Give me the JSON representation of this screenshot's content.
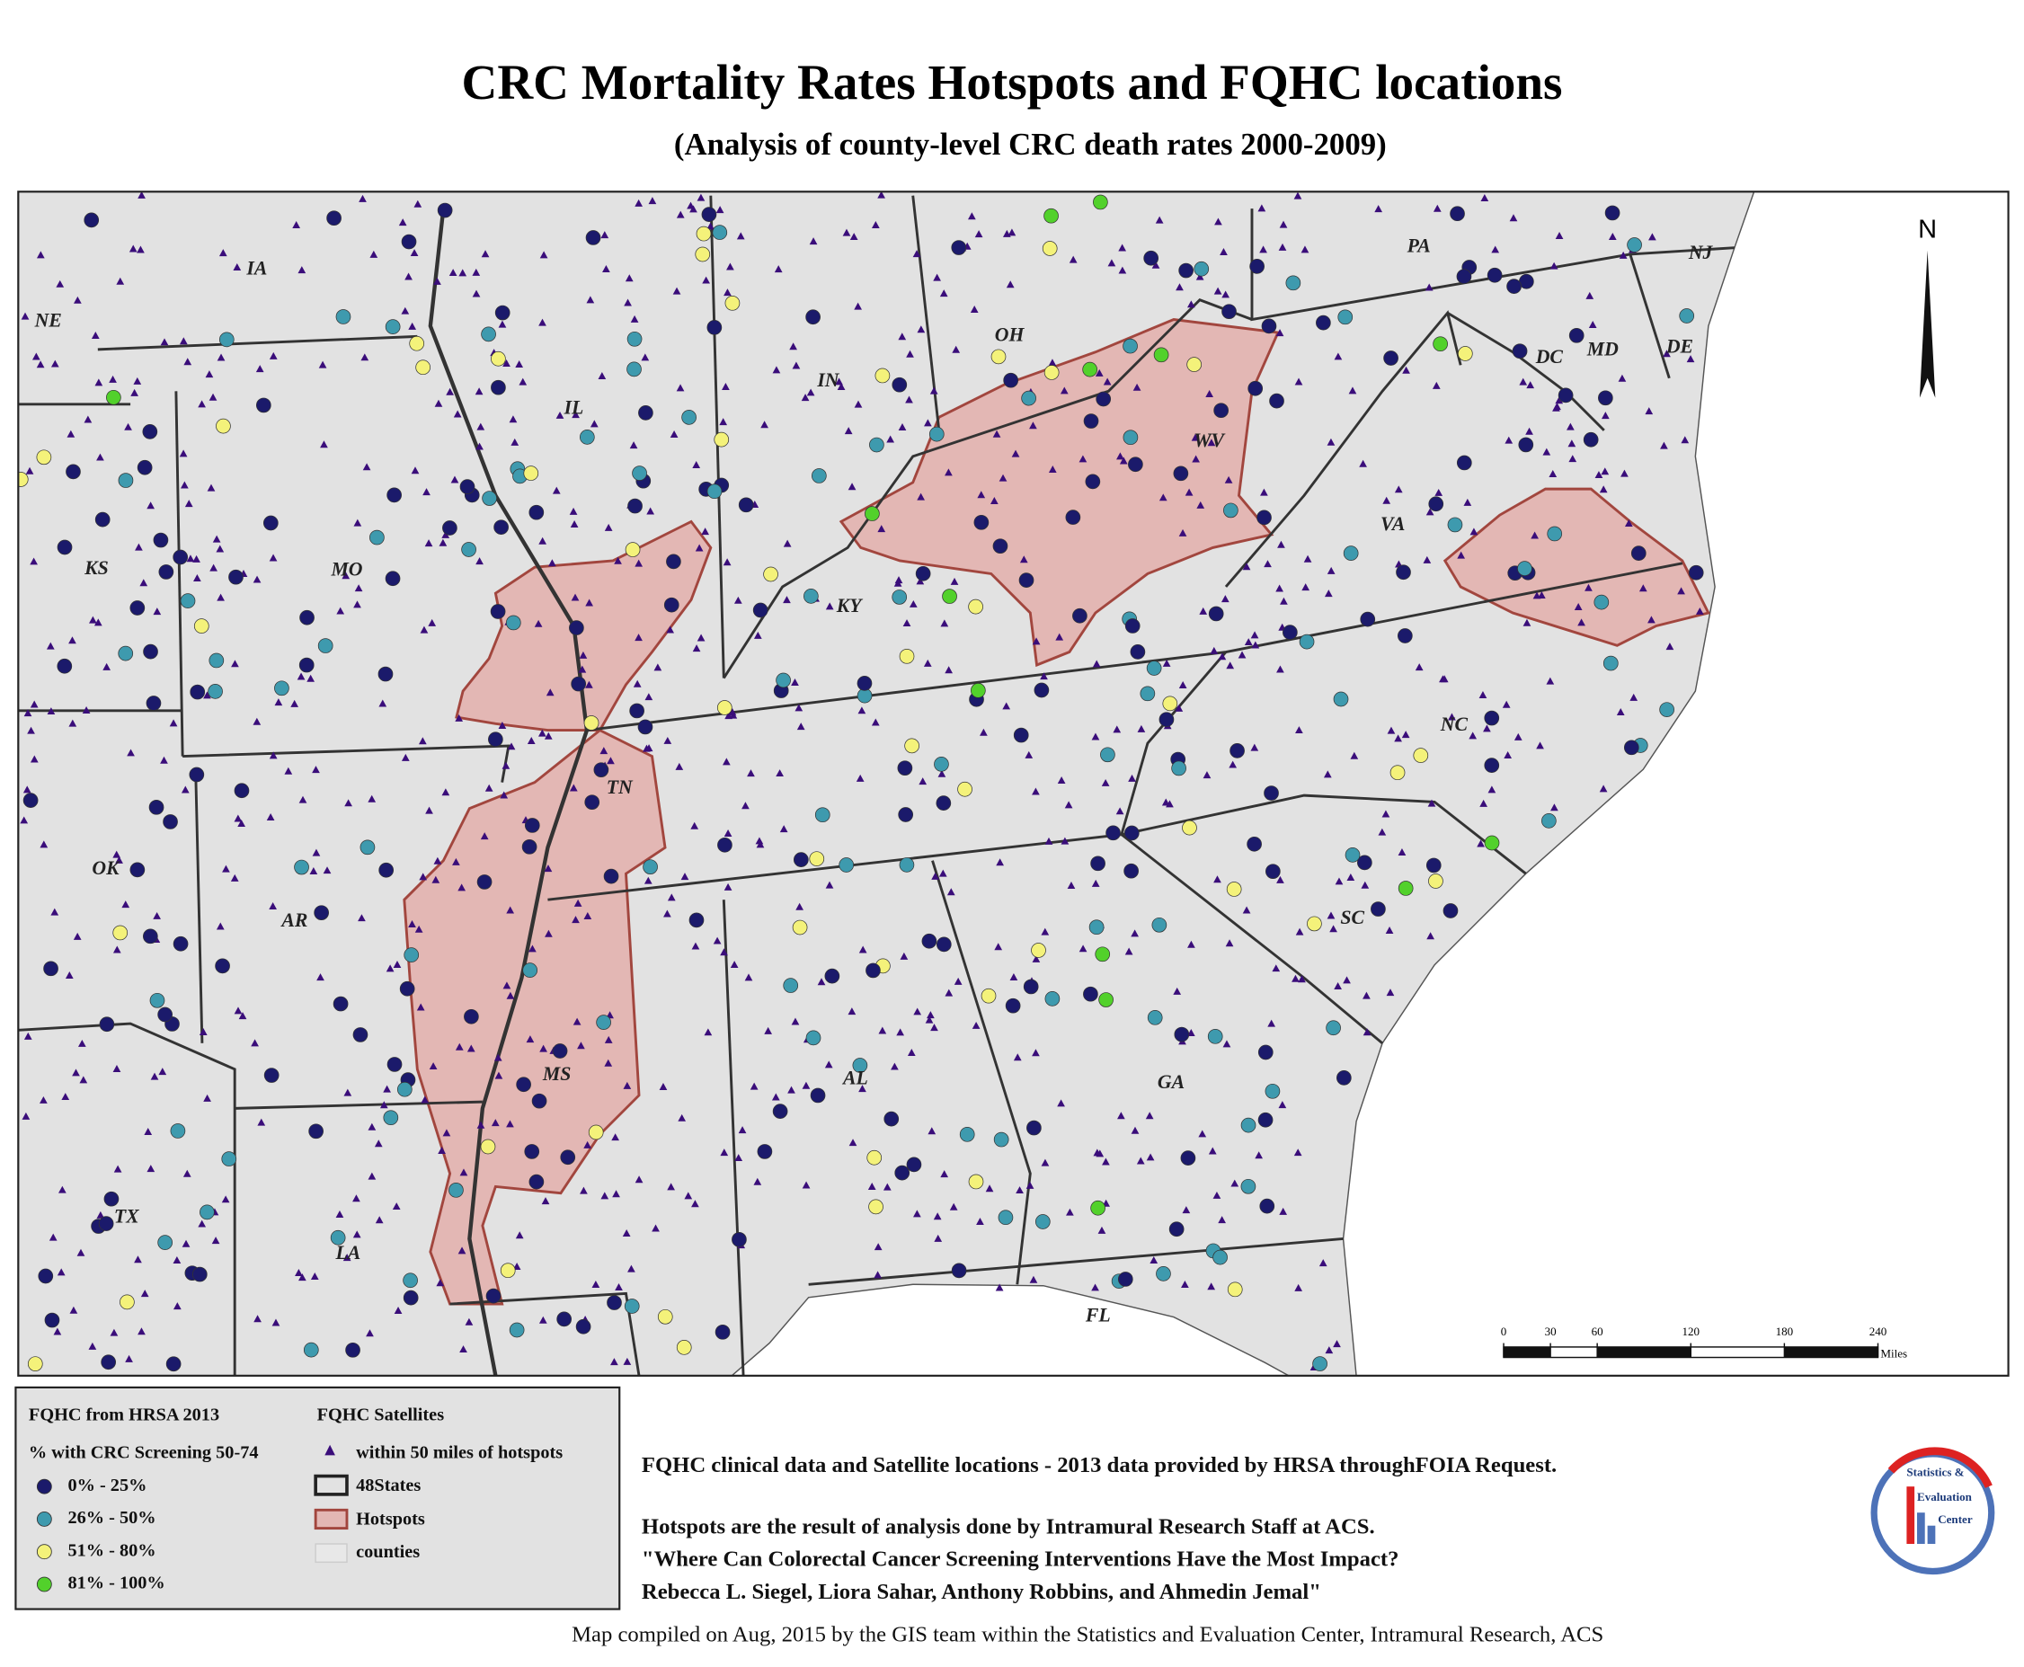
{
  "title": "CRC Mortality Rates Hotspots and FQHC locations",
  "subtitle": "(Analysis of county-level CRC death rates 2000-2009)",
  "map": {
    "state_labels": [
      "IA",
      "NE",
      "IL",
      "IN",
      "OH",
      "PA",
      "NJ",
      "DC",
      "MD",
      "DE",
      "WV",
      "VA",
      "KS",
      "MO",
      "KY",
      "NC",
      "TN",
      "OK",
      "AR",
      "SC",
      "MS",
      "AL",
      "GA",
      "TX",
      "LA",
      "FL"
    ],
    "north": "N",
    "scale_bar": {
      "ticks": [
        0,
        30,
        60,
        120,
        180,
        240
      ],
      "unit": "Miles"
    }
  },
  "legend": {
    "fqhc_title": "FQHC from HRSA 2013",
    "screening_title": "% with CRC Screening 50-74",
    "classes": [
      {
        "label": "0% - 25%",
        "color": "#1b1a6b"
      },
      {
        "label": "26% - 50%",
        "color": "#3e9aae"
      },
      {
        "label": "51% - 80%",
        "color": "#f4f27a"
      },
      {
        "label": "81% - 100%",
        "color": "#52d12b"
      }
    ],
    "satellites_title": "FQHC Satellites",
    "satellite_label": "within 50 miles of hotspots",
    "satellite_color": "#3a0d7a",
    "layers": [
      "48States",
      "Hotspots",
      "counties"
    ]
  },
  "notes": [
    "FQHC clinical data and Satellite locations - 2013 data provided by HRSA throughFOIA Request.",
    "Hotspots are the result of analysis done by Intramural Research Staff at ACS.",
    "\"Where Can Colorectal Cancer Screening Interventions Have the Most Impact?",
    "Rebecca L. Siegel, Liora Sahar, Anthony Robbins, and Ahmedin Jemal\""
  ],
  "footer": "Map compiled on Aug, 2015 by the GIS team within the Statistics and Evaluation Center, Intramural Research, ACS",
  "logo": {
    "lines": [
      "Statistics &",
      "Evaluation",
      "Center"
    ]
  }
}
